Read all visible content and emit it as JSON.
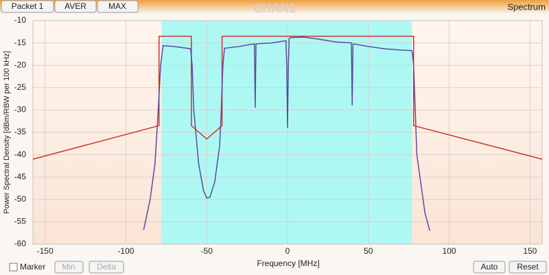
{
  "toolbar": {
    "buttons": [
      "Packet 1",
      "AVER",
      "MAX"
    ],
    "title": "CHAN1",
    "mode": "Spectrum"
  },
  "chart_data": {
    "type": "line",
    "xlabel": "Frequency [MHz]",
    "ylabel": "Power Spectral Density [dBm/RBW per 100 kHz]",
    "xlim": [
      -157.5,
      157.5
    ],
    "ylim": [
      -60,
      -10
    ],
    "xticks": [
      -150,
      -100,
      -50,
      0,
      50,
      100,
      150
    ],
    "yticks": [
      -10,
      -15,
      -20,
      -25,
      -30,
      -35,
      -40,
      -45,
      -50,
      -55,
      -60
    ],
    "grid": true,
    "band": [
      -78,
      77
    ],
    "band_color": "#aef8f4",
    "series": [
      {
        "color": "#d0312d",
        "x": [
          -157.5,
          -79.5,
          -79.5,
          -59.5,
          -59.5,
          -50,
          -40.5,
          -40.5,
          78,
          78,
          157.5
        ],
        "values": [
          -41,
          -33.5,
          -13.5,
          -13.5,
          -33.5,
          -36.5,
          -33.5,
          -13.5,
          -13.5,
          -33.5,
          -41
        ]
      },
      {
        "color": "#5a4a9c",
        "x": [
          -89,
          -85,
          -82,
          -80,
          -78.5,
          -77,
          -70,
          -60,
          -59,
          -58,
          -55,
          -52,
          -50,
          -48,
          -45,
          -42,
          -41,
          -40,
          -39,
          -30,
          -20.5,
          -20,
          -19.5,
          -10,
          -1,
          -0.5,
          0,
          0.5,
          1,
          2,
          10,
          20,
          30,
          39.5,
          40,
          40.5,
          50,
          60,
          70,
          77,
          78,
          80,
          85,
          88
        ],
        "values": [
          -56.8,
          -50,
          -42,
          -30,
          -20,
          -15.6,
          -15.8,
          -16.3,
          -20,
          -30,
          -42,
          -48,
          -49.7,
          -49.5,
          -46,
          -38,
          -30,
          -20,
          -16.2,
          -15.8,
          -15.2,
          -29.5,
          -15.2,
          -15,
          -14.5,
          -20,
          -34,
          -20,
          -14,
          -13.8,
          -13.7,
          -14.2,
          -14.8,
          -15,
          -29,
          -15.2,
          -15.8,
          -16.3,
          -16.6,
          -16.7,
          -20,
          -40,
          -53,
          -57
        ]
      }
    ]
  },
  "footer": {
    "marker": "Marker",
    "left_buttons": [
      "Min",
      "Delta"
    ],
    "right_buttons": [
      "Auto",
      "Reset"
    ]
  }
}
